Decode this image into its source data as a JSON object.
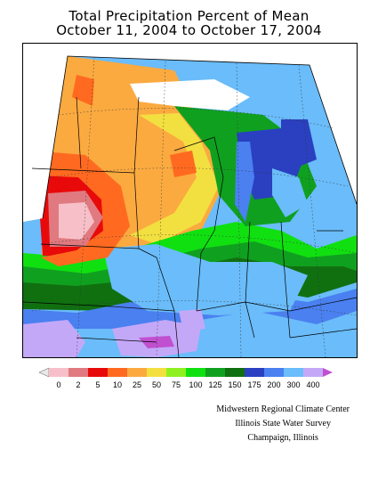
{
  "title": {
    "line1": "Total Precipitation Percent of Mean",
    "line2": "October 11, 2004 to October 17, 2004"
  },
  "legend": {
    "labels": [
      "0",
      "2",
      "5",
      "10",
      "25",
      "50",
      "75",
      "100",
      "125",
      "150",
      "175",
      "200",
      "300",
      "400"
    ],
    "colors": [
      "#e8e8e8",
      "#f7c0c8",
      "#e07a80",
      "#e80a0a",
      "#ff6a20",
      "#fbaa40",
      "#f2e040",
      "#8ef020",
      "#10e010",
      "#10a020",
      "#107010",
      "#2a40c0",
      "#4a80f0",
      "#6abcfa",
      "#c4a8f8",
      "#c050d0"
    ]
  },
  "credits": {
    "line1": "Midwestern Regional Climate Center",
    "line2": "Illinois State Water Survey",
    "line3": "Champaign, Illinois"
  }
}
